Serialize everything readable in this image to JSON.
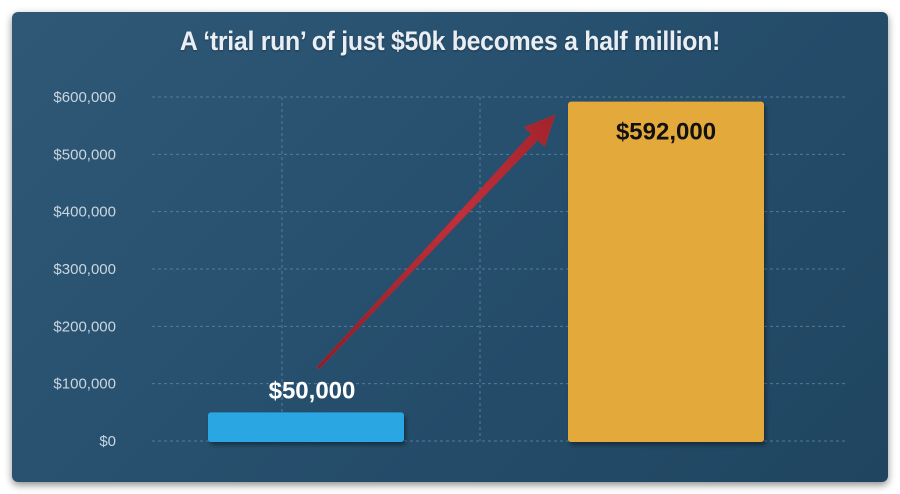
{
  "title": "A ‘trial run’ of just $50k becomes a half million!",
  "colors": {
    "panel_background": "#27506e",
    "grid": "#5f88a6",
    "bar_initial": "#2aa7e2",
    "bar_final": "#e4a93a",
    "arrow": "#b52a34",
    "label_light": "#ffffff",
    "label_dark": "#111111"
  },
  "chart_data": {
    "type": "bar",
    "title": "A ‘trial run’ of just $50k becomes a half million!",
    "xlabel": "",
    "ylabel": "",
    "categories": [
      "",
      ""
    ],
    "values": [
      50000,
      592000
    ],
    "data_labels": [
      "$50,000",
      "$592,000"
    ],
    "ylim": [
      0,
      600000
    ],
    "yticks": [
      0,
      100000,
      200000,
      300000,
      400000,
      500000,
      600000
    ],
    "ytick_labels": [
      "$0",
      "$100,000",
      "$200,000",
      "$300,000",
      "$400,000",
      "$500,000",
      "$600,000"
    ],
    "grid": true,
    "annotation": "arrow from the $50,000 bar up to the $592,000 bar"
  }
}
